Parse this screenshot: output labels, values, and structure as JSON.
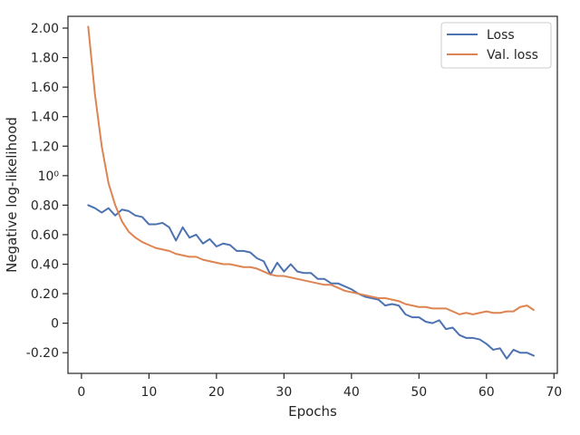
{
  "chart_data": {
    "type": "line",
    "title": "",
    "xlabel": "Epochs",
    "ylabel": "Negative log-likelihood",
    "xlim": [
      -2,
      70.5
    ],
    "ylim": [
      -0.34,
      2.08
    ],
    "grid": false,
    "legend_position": "top-right",
    "x_ticks": [
      0,
      10,
      20,
      30,
      40,
      50,
      60,
      70
    ],
    "x_tick_labels": [
      "0",
      "10",
      "20",
      "30",
      "40",
      "50",
      "60",
      "70"
    ],
    "y_ticks": [
      -0.2,
      0,
      0.2,
      0.4,
      0.6,
      0.8,
      1.0,
      1.2,
      1.4,
      1.6,
      1.8,
      2.0
    ],
    "y_tick_labels": [
      "-0.20",
      "0",
      "0.20",
      "0.40",
      "0.60",
      "0.80",
      "10⁰",
      "1.20",
      "1.40",
      "1.60",
      "1.80",
      "2.00"
    ],
    "x": [
      1,
      2,
      3,
      4,
      5,
      6,
      7,
      8,
      9,
      10,
      11,
      12,
      13,
      14,
      15,
      16,
      17,
      18,
      19,
      20,
      21,
      22,
      23,
      24,
      25,
      26,
      27,
      28,
      29,
      30,
      31,
      32,
      33,
      34,
      35,
      36,
      37,
      38,
      39,
      40,
      41,
      42,
      43,
      44,
      45,
      46,
      47,
      48,
      49,
      50,
      51,
      52,
      53,
      54,
      55,
      56,
      57,
      58,
      59,
      60,
      61,
      62,
      63,
      64,
      65,
      66,
      67
    ],
    "series": [
      {
        "name": "Loss",
        "color": "#4c72b0",
        "values": [
          0.8,
          0.78,
          0.75,
          0.78,
          0.73,
          0.77,
          0.76,
          0.73,
          0.72,
          0.67,
          0.67,
          0.68,
          0.65,
          0.56,
          0.65,
          0.58,
          0.6,
          0.54,
          0.57,
          0.52,
          0.54,
          0.53,
          0.49,
          0.49,
          0.48,
          0.44,
          0.42,
          0.33,
          0.41,
          0.35,
          0.4,
          0.35,
          0.34,
          0.34,
          0.3,
          0.3,
          0.27,
          0.27,
          0.25,
          0.23,
          0.2,
          0.18,
          0.17,
          0.16,
          0.12,
          0.13,
          0.12,
          0.06,
          0.04,
          0.04,
          0.01,
          0.0,
          0.02,
          -0.04,
          -0.03,
          -0.08,
          -0.1,
          -0.1,
          -0.11,
          -0.14,
          -0.18,
          -0.17,
          -0.24,
          -0.18,
          -0.2,
          -0.2,
          -0.22
        ]
      },
      {
        "name": "Val. loss",
        "color": "#dd8452",
        "values": [
          2.01,
          1.55,
          1.2,
          0.95,
          0.8,
          0.69,
          0.62,
          0.58,
          0.55,
          0.53,
          0.51,
          0.5,
          0.49,
          0.47,
          0.46,
          0.45,
          0.45,
          0.43,
          0.42,
          0.41,
          0.4,
          0.4,
          0.39,
          0.38,
          0.38,
          0.37,
          0.35,
          0.33,
          0.32,
          0.32,
          0.31,
          0.3,
          0.29,
          0.28,
          0.27,
          0.26,
          0.26,
          0.24,
          0.22,
          0.21,
          0.2,
          0.19,
          0.18,
          0.17,
          0.17,
          0.16,
          0.15,
          0.13,
          0.12,
          0.11,
          0.11,
          0.1,
          0.1,
          0.1,
          0.08,
          0.06,
          0.07,
          0.06,
          0.07,
          0.08,
          0.07,
          0.07,
          0.08,
          0.08,
          0.11,
          0.12,
          0.09
        ]
      }
    ]
  }
}
